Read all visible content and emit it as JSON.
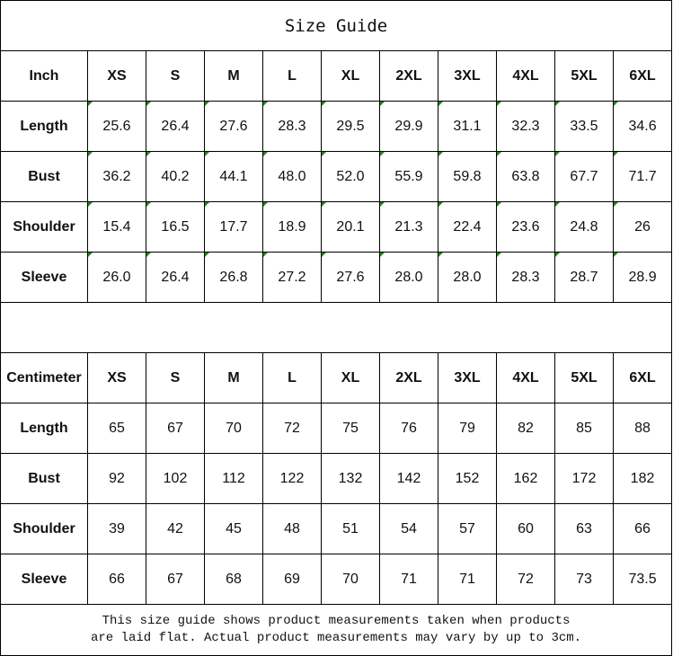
{
  "title": "Size Guide",
  "sizes": [
    "XS",
    "S",
    "M",
    "L",
    "XL",
    "2XL",
    "3XL",
    "4XL",
    "5XL",
    "6XL"
  ],
  "inch": {
    "unit_label": "Inch",
    "rows": [
      {
        "label": "Length",
        "values": [
          "25.6",
          "26.4",
          "27.6",
          "28.3",
          "29.5",
          "29.9",
          "31.1",
          "32.3",
          "33.5",
          "34.6"
        ]
      },
      {
        "label": "Bust",
        "values": [
          "36.2",
          "40.2",
          "44.1",
          "48.0",
          "52.0",
          "55.9",
          "59.8",
          "63.8",
          "67.7",
          "71.7"
        ]
      },
      {
        "label": "Shoulder",
        "values": [
          "15.4",
          "16.5",
          "17.7",
          "18.9",
          "20.1",
          "21.3",
          "22.4",
          "23.6",
          "24.8",
          "26"
        ]
      },
      {
        "label": "Sleeve",
        "values": [
          "26.0",
          "26.4",
          "26.8",
          "27.2",
          "27.6",
          "28.0",
          "28.0",
          "28.3",
          "28.7",
          "28.9"
        ]
      }
    ]
  },
  "centimeter": {
    "unit_label": "Centimeter",
    "rows": [
      {
        "label": "Length",
        "values": [
          "65",
          "67",
          "70",
          "72",
          "75",
          "76",
          "79",
          "82",
          "85",
          "88"
        ]
      },
      {
        "label": "Bust",
        "values": [
          "92",
          "102",
          "112",
          "122",
          "132",
          "142",
          "152",
          "162",
          "172",
          "182"
        ]
      },
      {
        "label": "Shoulder",
        "values": [
          "39",
          "42",
          "45",
          "48",
          "51",
          "54",
          "57",
          "60",
          "63",
          "66"
        ]
      },
      {
        "label": "Sleeve",
        "values": [
          "66",
          "67",
          "68",
          "69",
          "70",
          "71",
          "71",
          "72",
          "73",
          "73.5"
        ]
      }
    ]
  },
  "note_line1": "This size guide shows product measurements taken when products",
  "note_line2": "are laid flat. Actual product measurements may vary by up to 3cm.",
  "colors": {
    "border": "#000000",
    "text_as_number_marker": "#1a8a1a"
  }
}
